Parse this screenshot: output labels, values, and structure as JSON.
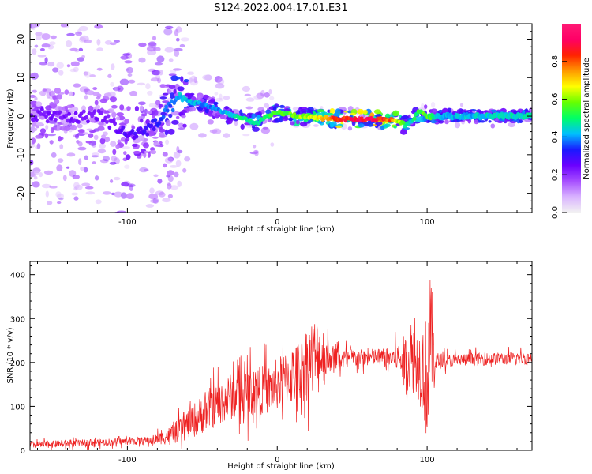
{
  "figure": {
    "title": "S124.2022.004.17.01.E31"
  },
  "colors": {
    "snr_line": "#ee2222",
    "axis": "#000000",
    "colorbar_stops": [
      "#f2f2f2",
      "#d9b3ff",
      "#a64dff",
      "#6a00ff",
      "#1a1aff",
      "#00bfff",
      "#00ff66",
      "#66ff00",
      "#ffff00",
      "#ff9900",
      "#ff2200",
      "#ff0066",
      "#ff1a75"
    ]
  },
  "chart_data": [
    {
      "type": "heatmap",
      "title": "",
      "xlabel": "Height of straight line (km)",
      "ylabel": "Frequency (Hz)",
      "xlim": [
        -165,
        170
      ],
      "ylim": [
        -25,
        24
      ],
      "xticks": [
        -100,
        0,
        100
      ],
      "yticks": [
        -20,
        -10,
        0,
        10,
        20
      ],
      "colorbar": {
        "label": "Normalized spectral amplitude",
        "range": [
          0,
          1
        ],
        "ticks": [
          0.0,
          0.2,
          0.4,
          0.6,
          0.8
        ]
      },
      "ridge": {
        "x": [
          -165,
          -150,
          -135,
          -120,
          -110,
          -100,
          -90,
          -80,
          -72,
          -65,
          -55,
          -45,
          -35,
          -28,
          -20,
          -15,
          -8,
          0,
          8,
          15,
          25,
          35,
          45,
          55,
          65,
          75,
          82,
          86,
          90,
          95,
          100,
          110,
          130,
          150,
          170
        ],
        "y": [
          0.5,
          0.0,
          -0.5,
          0.5,
          -2.0,
          -5.0,
          -4.0,
          -2.0,
          2.0,
          4.5,
          3.5,
          2.5,
          1.0,
          0.0,
          -1.0,
          -2.0,
          -0.5,
          1.0,
          0.5,
          0.0,
          -0.5,
          -0.5,
          -0.8,
          -0.8,
          -0.8,
          -0.8,
          -1.5,
          -2.5,
          -1.0,
          1.5,
          0.0,
          0.0,
          0.0,
          0.0,
          0.0
        ],
        "amplitude": [
          0.25,
          0.25,
          0.25,
          0.25,
          0.25,
          0.3,
          0.3,
          0.35,
          0.4,
          0.45,
          0.45,
          0.4,
          0.45,
          0.5,
          0.55,
          0.5,
          0.55,
          0.6,
          0.6,
          0.65,
          0.7,
          0.85,
          0.9,
          0.95,
          0.95,
          0.85,
          0.65,
          0.5,
          0.5,
          0.6,
          0.6,
          0.45,
          0.45,
          0.5,
          0.5
        ]
      }
    },
    {
      "type": "line",
      "title": "",
      "xlabel": "Height of straight line (km)",
      "ylabel": "SNR (10 * v/v)",
      "xlim": [
        -165,
        170
      ],
      "ylim": [
        0,
        430
      ],
      "xticks": [
        -100,
        0,
        100
      ],
      "yticks": [
        0,
        100,
        200,
        300,
        400
      ],
      "series": [
        {
          "x": [
            -165,
            -140,
            -120,
            -100,
            -85,
            -75,
            -65,
            -55,
            -45,
            -35,
            -25,
            -15,
            -5,
            5,
            15,
            20,
            25,
            30,
            35,
            45,
            55,
            65,
            75,
            80,
            85,
            90,
            95,
            98,
            100,
            102,
            104,
            106,
            110,
            120,
            140,
            170
          ],
          "y": [
            12,
            15,
            18,
            20,
            22,
            30,
            45,
            70,
            95,
            115,
            130,
            135,
            140,
            160,
            180,
            200,
            210,
            215,
            210,
            208,
            210,
            212,
            210,
            212,
            200,
            205,
            195,
            180,
            160,
            260,
            240,
            200,
            205,
            205,
            208,
            210
          ],
          "noise_amplitude": [
            10,
            10,
            10,
            10,
            12,
            20,
            35,
            50,
            60,
            65,
            70,
            70,
            70,
            80,
            90,
            110,
            120,
            100,
            40,
            30,
            25,
            25,
            30,
            40,
            80,
            90,
            110,
            150,
            190,
            170,
            140,
            30,
            20,
            18,
            18,
            18
          ]
        }
      ]
    }
  ]
}
